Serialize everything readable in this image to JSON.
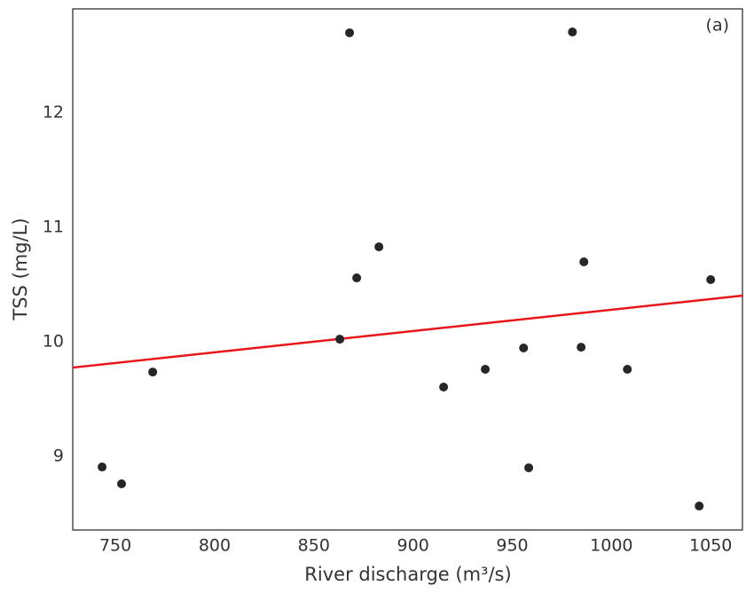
{
  "chart_data": {
    "type": "scatter",
    "annotation": "(a)",
    "x_label": "River discharge (m³/s)",
    "y_label": "TSS (mg/L)",
    "x": [
      743.3,
      753.1,
      768.8,
      863.1,
      868.0,
      871.6,
      882.8,
      915.4,
      936.4,
      955.7,
      958.3,
      980.3,
      984.7,
      986.1,
      1008.0,
      1044.2,
      1050.0
    ],
    "values": [
      8.907,
      8.76,
      9.736,
      10.023,
      12.698,
      10.558,
      10.829,
      9.605,
      9.76,
      9.946,
      8.9,
      12.705,
      9.953,
      10.698,
      9.76,
      8.566,
      10.543
    ],
    "color": "#262626",
    "trendline": {
      "color": "#e8161b",
      "x": [
        728.5,
        1066
      ],
      "values": [
        9.775,
        10.403
      ]
    },
    "xlim": [
      728.5,
      1066
    ],
    "xticks": [
      750,
      800,
      850,
      900,
      950,
      1000,
      1050
    ],
    "ylim": [
      8.357,
      12.907
    ],
    "yticks": [
      9,
      10,
      11,
      12
    ],
    "grid": false
  }
}
